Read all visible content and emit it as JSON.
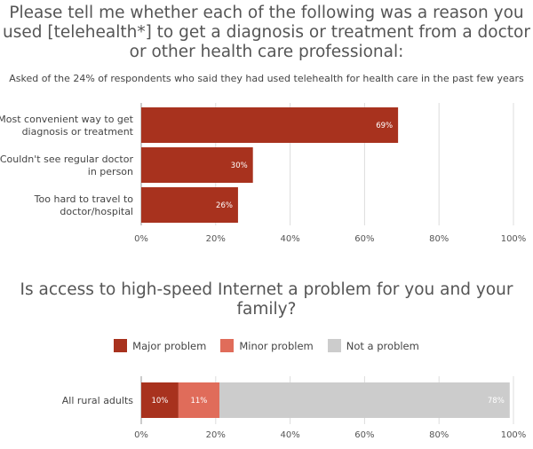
{
  "chart_data": [
    {
      "type": "bar",
      "orientation": "horizontal",
      "title": "Please tell me whether each of the following was a reason you used [telehealth*] to get a diagnosis or treatment from a doctor or other health care professional:",
      "subtitle": "Asked of the 24% of respondents who said they had used telehealth for health care in the past few years",
      "categories": [
        [
          "Most convenient way to get",
          "diagnosis or treatment"
        ],
        [
          "Couldn't see regular doctor",
          "in person"
        ],
        [
          "Too hard to travel to",
          "doctor/hospital"
        ]
      ],
      "values": [
        69,
        30,
        26
      ],
      "value_labels": [
        "69%",
        "30%",
        "26%"
      ],
      "xlim": [
        0,
        100
      ],
      "xticks": [
        "0%",
        "20%",
        "40%",
        "60%",
        "80%",
        "100%"
      ],
      "color": "#a8321e",
      "grid": true
    },
    {
      "type": "bar",
      "orientation": "horizontal",
      "stacked": true,
      "title": "Is access to high-speed Internet a problem for you and your family?",
      "categories": [
        "All rural adults"
      ],
      "series": [
        {
          "name": "Major problem",
          "values": [
            10
          ],
          "label": "10%",
          "color": "#a8321e"
        },
        {
          "name": "Minor problem",
          "values": [
            11
          ],
          "label": "11%",
          "color": "#e06c5a"
        },
        {
          "name": "Not a problem",
          "values": [
            78
          ],
          "label": "78%",
          "color": "#cccccc"
        }
      ],
      "xlim": [
        0,
        100
      ],
      "xticks": [
        "0%",
        "20%",
        "40%",
        "60%",
        "80%",
        "100%"
      ],
      "legend_position": "top-center",
      "grid": true
    }
  ]
}
